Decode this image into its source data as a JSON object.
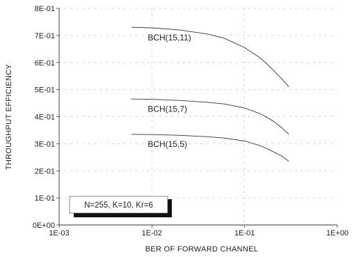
{
  "chart_data": {
    "type": "line",
    "title": "",
    "xlabel": "BER OF FORWARD  CHANNEL",
    "ylabel": "THROUGHPUT  EFFICIENCY",
    "x_scale": "log",
    "xlim": [
      0.001,
      1
    ],
    "ylim": [
      0,
      0.8
    ],
    "x_ticks": [
      0.001,
      0.01,
      0.1,
      1
    ],
    "x_tick_labels": [
      "1E-03",
      "1E-02",
      "1E-01",
      "1E+00"
    ],
    "y_ticks": [
      0,
      0.1,
      0.2,
      0.3,
      0.4,
      0.5,
      0.6,
      0.7,
      0.8
    ],
    "y_tick_labels": [
      "0E+00",
      "1E-01",
      "2E-01",
      "3E-01",
      "4E-01",
      "5E-01",
      "6E-01",
      "7E-01",
      "8E-01"
    ],
    "grid": "dotted",
    "series": [
      {
        "name": "BCH(15,11)",
        "x": [
          0.006,
          0.01,
          0.02,
          0.04,
          0.06,
          0.1,
          0.15,
          0.2,
          0.25,
          0.3
        ],
        "y": [
          0.73,
          0.728,
          0.72,
          0.705,
          0.69,
          0.655,
          0.615,
          0.575,
          0.54,
          0.51
        ]
      },
      {
        "name": "BCH(15,7)",
        "x": [
          0.006,
          0.01,
          0.02,
          0.04,
          0.06,
          0.1,
          0.15,
          0.2,
          0.25,
          0.3
        ],
        "y": [
          0.465,
          0.464,
          0.46,
          0.453,
          0.447,
          0.432,
          0.41,
          0.385,
          0.36,
          0.335
        ]
      },
      {
        "name": "BCH(15,5)",
        "x": [
          0.006,
          0.01,
          0.02,
          0.04,
          0.06,
          0.1,
          0.15,
          0.2,
          0.25,
          0.3
        ],
        "y": [
          0.335,
          0.334,
          0.331,
          0.326,
          0.321,
          0.31,
          0.292,
          0.272,
          0.255,
          0.235
        ]
      }
    ],
    "annotation": "N=255, K=10, Kr=6"
  }
}
